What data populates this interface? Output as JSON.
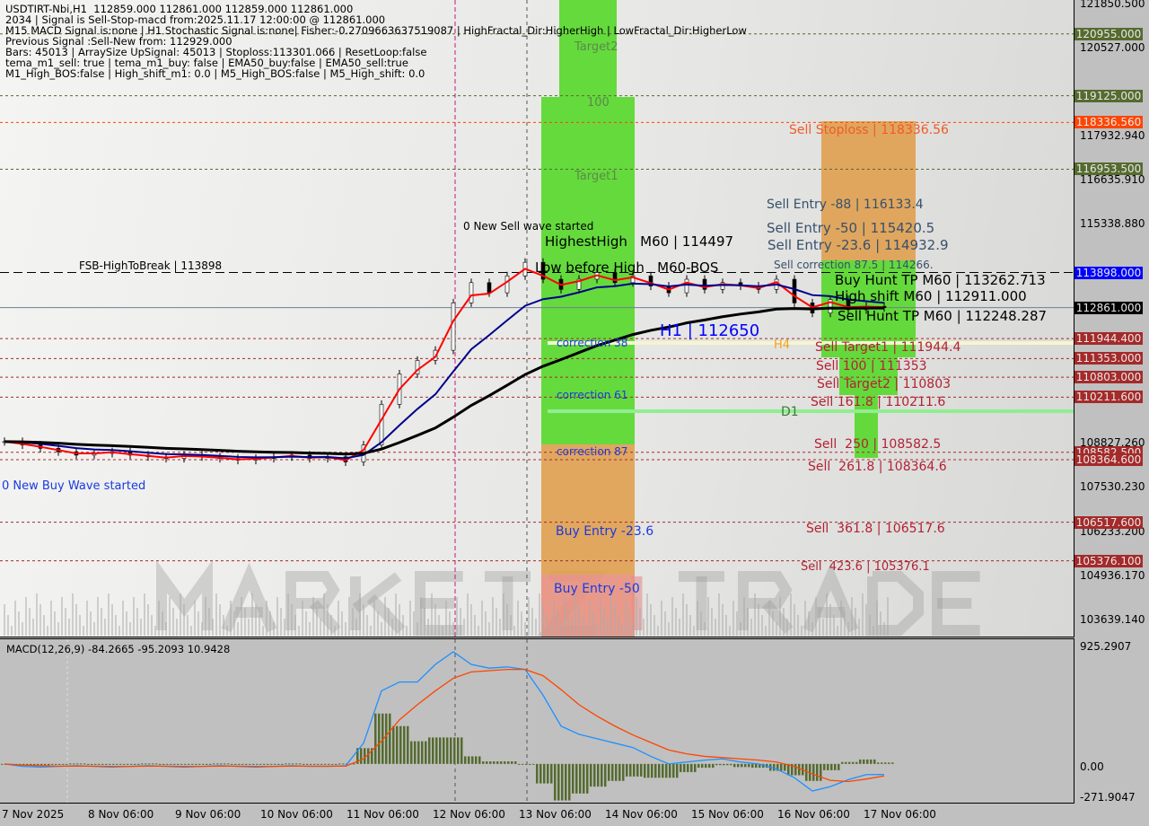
{
  "info_lines": [
    "USDTIRT-Nbi,H1  112859.000 112861.000 112859.000 112861.000",
    "2034 | Signal is Sell-Stop-macd from:2025.11.17 12:00:00 @ 112861.000",
    "M15 MACD Signal is:none | H1 Stochastic Signal is:none| Fisher:-0.2709663637519087 | HighFractal_Dir:HigherHigh | LowFractal_Dir:HigherLow",
    "Previous Signal :Sell-New from: 112929.000",
    "Bars: 45013 | ArraySize UpSignal: 45013 | Stoploss:113301.066 | ResetLoop:false",
    "tema_m1_sell: true | tema_m1_buy: false | EMA50_buy:false | EMA50_sell:true",
    "M1_High_BOS:false | High_shift_m1: 0.0 | M5_High_BOS:false | M5_High_shift: 0.0"
  ],
  "watermark": "MARKETZITRADE",
  "annotations": [
    {
      "text": "FSB-HighToBreak | 113898",
      "color": "#000000"
    },
    {
      "text": "0 New Sell wave started",
      "color": "#000000"
    },
    {
      "text": "HighestHigh   M60 | 114497",
      "color": "#000000"
    },
    {
      "text": "Low before High   M60-BOS",
      "color": "#000000"
    },
    {
      "text": "Target2",
      "color": "#5a8a4a"
    },
    {
      "text": "100",
      "color": "#5a8a4a"
    },
    {
      "text": "Target1",
      "color": "#5a8a4a"
    },
    {
      "text": "correction 38",
      "color": "#1a3adf"
    },
    {
      "text": "correction 61",
      "color": "#1a3adf"
    },
    {
      "text": "correction 87",
      "color": "#1a3adf"
    },
    {
      "text": "Buy Entry -23.6",
      "color": "#1a3adf"
    },
    {
      "text": "Buy Entry -50",
      "color": "#1a3adf"
    },
    {
      "text": "0 New Buy Wave started",
      "color": "#1a3adf"
    },
    {
      "text": "Sell Stoploss | 118336.56",
      "color": "#f05a28"
    },
    {
      "text": "Sell Entry -88 | 116133.4",
      "color": "#37506a"
    },
    {
      "text": "Sell Entry -50 | 115420.5",
      "color": "#37506a"
    },
    {
      "text": "Sell Entry -23.6 | 114932.9",
      "color": "#37506a"
    },
    {
      "text": "Sell correction 87.5 | 114266.",
      "color": "#37506a"
    },
    {
      "text": "Buy Hunt TP M60 | 113262.713",
      "color": "#000000"
    },
    {
      "text": "High shift M60 | 112911.000",
      "color": "#000000"
    },
    {
      "text": "Sell Hunt TP M60 | 112248.287",
      "color": "#000000"
    },
    {
      "text": "H1 | 112650",
      "color": "#0000ff"
    },
    {
      "text": "H4",
      "color": "#f0a020"
    },
    {
      "text": "Sell Target1 | 111944.4",
      "color": "#b22234"
    },
    {
      "text": "Sell 100 | 111353",
      "color": "#b22234"
    },
    {
      "text": "Sell Target2 | 110803",
      "color": "#b22234"
    },
    {
      "text": "Sell 161.8 | 110211.6",
      "color": "#b22234"
    },
    {
      "text": "D1",
      "color": "#3a7a3a"
    },
    {
      "text": "Sell  250 | 108582.5",
      "color": "#b22234"
    },
    {
      "text": "Sell  261.8 | 108364.6",
      "color": "#b22234"
    },
    {
      "text": "Sell  361.8 | 106517.6",
      "color": "#b22234"
    },
    {
      "text": "Sell  423.6 | 105376.1",
      "color": "#b22234"
    }
  ],
  "chart_data": [
    {
      "type": "candlestick",
      "symbol": "USDTIRT-Nbi,H1",
      "ylim": [
        103639.14,
        121850.5
      ],
      "y_ticks": [
        "121850.500",
        "120527.000",
        "117932.940",
        "116635.910",
        "115338.880",
        "108827.260",
        "107530.230",
        "106233.200",
        "104936.170",
        "103639.140"
      ],
      "x_ticks": [
        "7 Nov 2025",
        "8 Nov 06:00",
        "9 Nov 06:00",
        "10 Nov 06:00",
        "11 Nov 06:00",
        "12 Nov 06:00",
        "13 Nov 06:00",
        "14 Nov 06:00",
        "15 Nov 06:00",
        "16 Nov 06:00",
        "17 Nov 06:00"
      ],
      "closes": [
        108900,
        108800,
        108700,
        108600,
        108500,
        108550,
        108600,
        108500,
        108450,
        108400,
        108500,
        108450,
        108400,
        108350,
        108400,
        108450,
        108500,
        108400,
        108450,
        108300,
        108800,
        110000,
        110900,
        111300,
        111600,
        113000,
        113600,
        113300,
        113800,
        114200,
        113700,
        113400,
        113700,
        113900,
        113600,
        113800,
        113500,
        113300,
        113700,
        113400,
        113600,
        113500,
        113400,
        113700,
        113000,
        112700,
        113100,
        112800,
        112900,
        112861
      ],
      "level_lines": [
        {
          "price": 120955.0,
          "color": "#556b2f"
        },
        {
          "price": 119125.0,
          "color": "#556b2f"
        },
        {
          "price": 118336.56,
          "color": "#ff4500"
        },
        {
          "price": 116953.5,
          "color": "#556b2f"
        },
        {
          "price": 113898.0,
          "color": "#000000"
        },
        {
          "price": 112861.0,
          "color": "#708090"
        },
        {
          "price": 111944.4,
          "color": "#a52a2a"
        },
        {
          "price": 111353.0,
          "color": "#a52a2a"
        },
        {
          "price": 110803.0,
          "color": "#a52a2a"
        },
        {
          "price": 110211.6,
          "color": "#a52a2a"
        },
        {
          "price": 108582.5,
          "color": "#a52a2a"
        },
        {
          "price": 108364.6,
          "color": "#a52a2a"
        },
        {
          "price": 106517.6,
          "color": "#a52a2a"
        },
        {
          "price": 105376.1,
          "color": "#a52a2a"
        }
      ],
      "price_tags": [
        {
          "text": "120955.000",
          "bg": "#556b2f"
        },
        {
          "text": "119125.000",
          "bg": "#556b2f"
        },
        {
          "text": "118336.560",
          "bg": "#ff4500"
        },
        {
          "text": "116953.500",
          "bg": "#556b2f"
        },
        {
          "text": "113898.000",
          "bg": "#0000ff"
        },
        {
          "text": "112861.000",
          "bg": "#000000"
        },
        {
          "text": "111944.400",
          "bg": "#a52a2a"
        },
        {
          "text": "111353.000",
          "bg": "#a52a2a"
        },
        {
          "text": "110803.000",
          "bg": "#a52a2a"
        },
        {
          "text": "110211.600",
          "bg": "#a52a2a"
        },
        {
          "text": "108582.500",
          "bg": "#a52a2a"
        },
        {
          "text": "108364.600",
          "bg": "#a52a2a"
        },
        {
          "text": "106517.600",
          "bg": "#a52a2a"
        },
        {
          "text": "105376.100",
          "bg": "#a52a2a"
        }
      ],
      "ema_colors": {
        "fast": "#ff0000",
        "mid": "#00008b",
        "slow": "#000000"
      }
    },
    {
      "type": "line",
      "title": "MACD(12,26,9) -84.2665 -95.2093 10.9428",
      "ylim": [
        -271.9047,
        925.2907
      ],
      "y_ticks": [
        "925.2907",
        "0.00",
        "-271.9047"
      ],
      "macd": [
        0,
        -20,
        -25,
        -20,
        -15,
        -20,
        -25,
        -20,
        -15,
        -20,
        -25,
        -20,
        -15,
        -20,
        -25,
        -20,
        -15,
        -20,
        -20,
        -15,
        165,
        580,
        650,
        650,
        790,
        890,
        790,
        760,
        770,
        750,
        545,
        300,
        235,
        200,
        165,
        130,
        60,
        0,
        15,
        30,
        40,
        15,
        0,
        -40,
        -110,
        -215,
        -180,
        -125,
        -85,
        -84.27
      ],
      "signal": [
        0,
        -10,
        -15,
        -18,
        -18,
        -18,
        -20,
        -20,
        -18,
        -18,
        -20,
        -20,
        -18,
        -18,
        -20,
        -20,
        -18,
        -18,
        -18,
        -18,
        40,
        180,
        350,
        470,
        580,
        680,
        730,
        740,
        750,
        750,
        700,
        590,
        470,
        380,
        300,
        230,
        170,
        110,
        80,
        60,
        50,
        40,
        30,
        15,
        -20,
        -80,
        -130,
        -140,
        -120,
        -95.21
      ],
      "colors": {
        "macd": "#1e90ff",
        "signal": "#ff4500",
        "histogram": "#556b2f"
      }
    }
  ]
}
